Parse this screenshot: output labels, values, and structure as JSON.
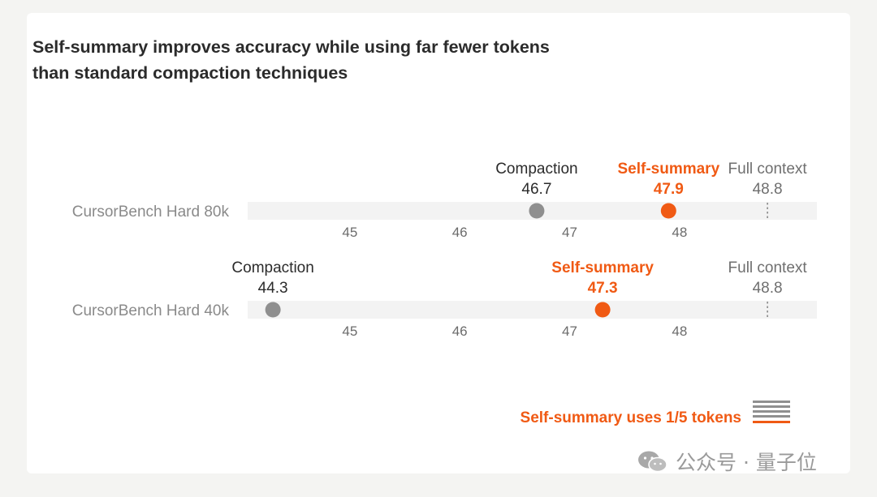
{
  "title": {
    "line1": "Self-summary improves accuracy while using far fewer tokens",
    "line2": "than standard compaction techniques"
  },
  "colors": {
    "accent": "#f05a14",
    "compaction": "#8f8f8f",
    "track": "#f3f3f3",
    "text_dark": "#2b2b2b",
    "text_muted": "#6b6b6b"
  },
  "chart_data": {
    "type": "scatter",
    "title": "Self-summary improves accuracy while using far fewer tokens than standard compaction techniques",
    "xlim": [
      44.07,
      49.25
    ],
    "ticks": [
      45,
      46,
      47,
      48
    ],
    "tick_labels": [
      "45",
      "46",
      "47",
      "48"
    ],
    "rows": [
      {
        "label": "CursorBench Hard 80k",
        "points": [
          {
            "name": "Compaction",
            "value": 46.7,
            "value_label": "46.7",
            "marker": "dot",
            "color": "#8f8f8f"
          },
          {
            "name": "Self-summary",
            "value": 47.9,
            "value_label": "47.9",
            "marker": "dot",
            "color": "#f05a14"
          },
          {
            "name": "Full context",
            "value": 48.8,
            "value_label": "48.8",
            "marker": "dashed-line",
            "color": "#8f8f8f"
          }
        ]
      },
      {
        "label": "CursorBench Hard 40k",
        "points": [
          {
            "name": "Compaction",
            "value": 44.3,
            "value_label": "44.3",
            "marker": "dot",
            "color": "#8f8f8f"
          },
          {
            "name": "Self-summary",
            "value": 47.3,
            "value_label": "47.3",
            "marker": "dot",
            "color": "#f05a14"
          },
          {
            "name": "Full context",
            "value": 48.8,
            "value_label": "48.8",
            "marker": "dashed-line",
            "color": "#8f8f8f"
          }
        ]
      }
    ],
    "annotation": "Self-summary uses 1/5 tokens"
  },
  "footer": {
    "annotation": "Self-summary uses 1/5 tokens",
    "token_icon": "stacked-lines-icon"
  },
  "watermark": {
    "text": "公众号 · 量子位",
    "icon": "wechat-logo-icon"
  }
}
